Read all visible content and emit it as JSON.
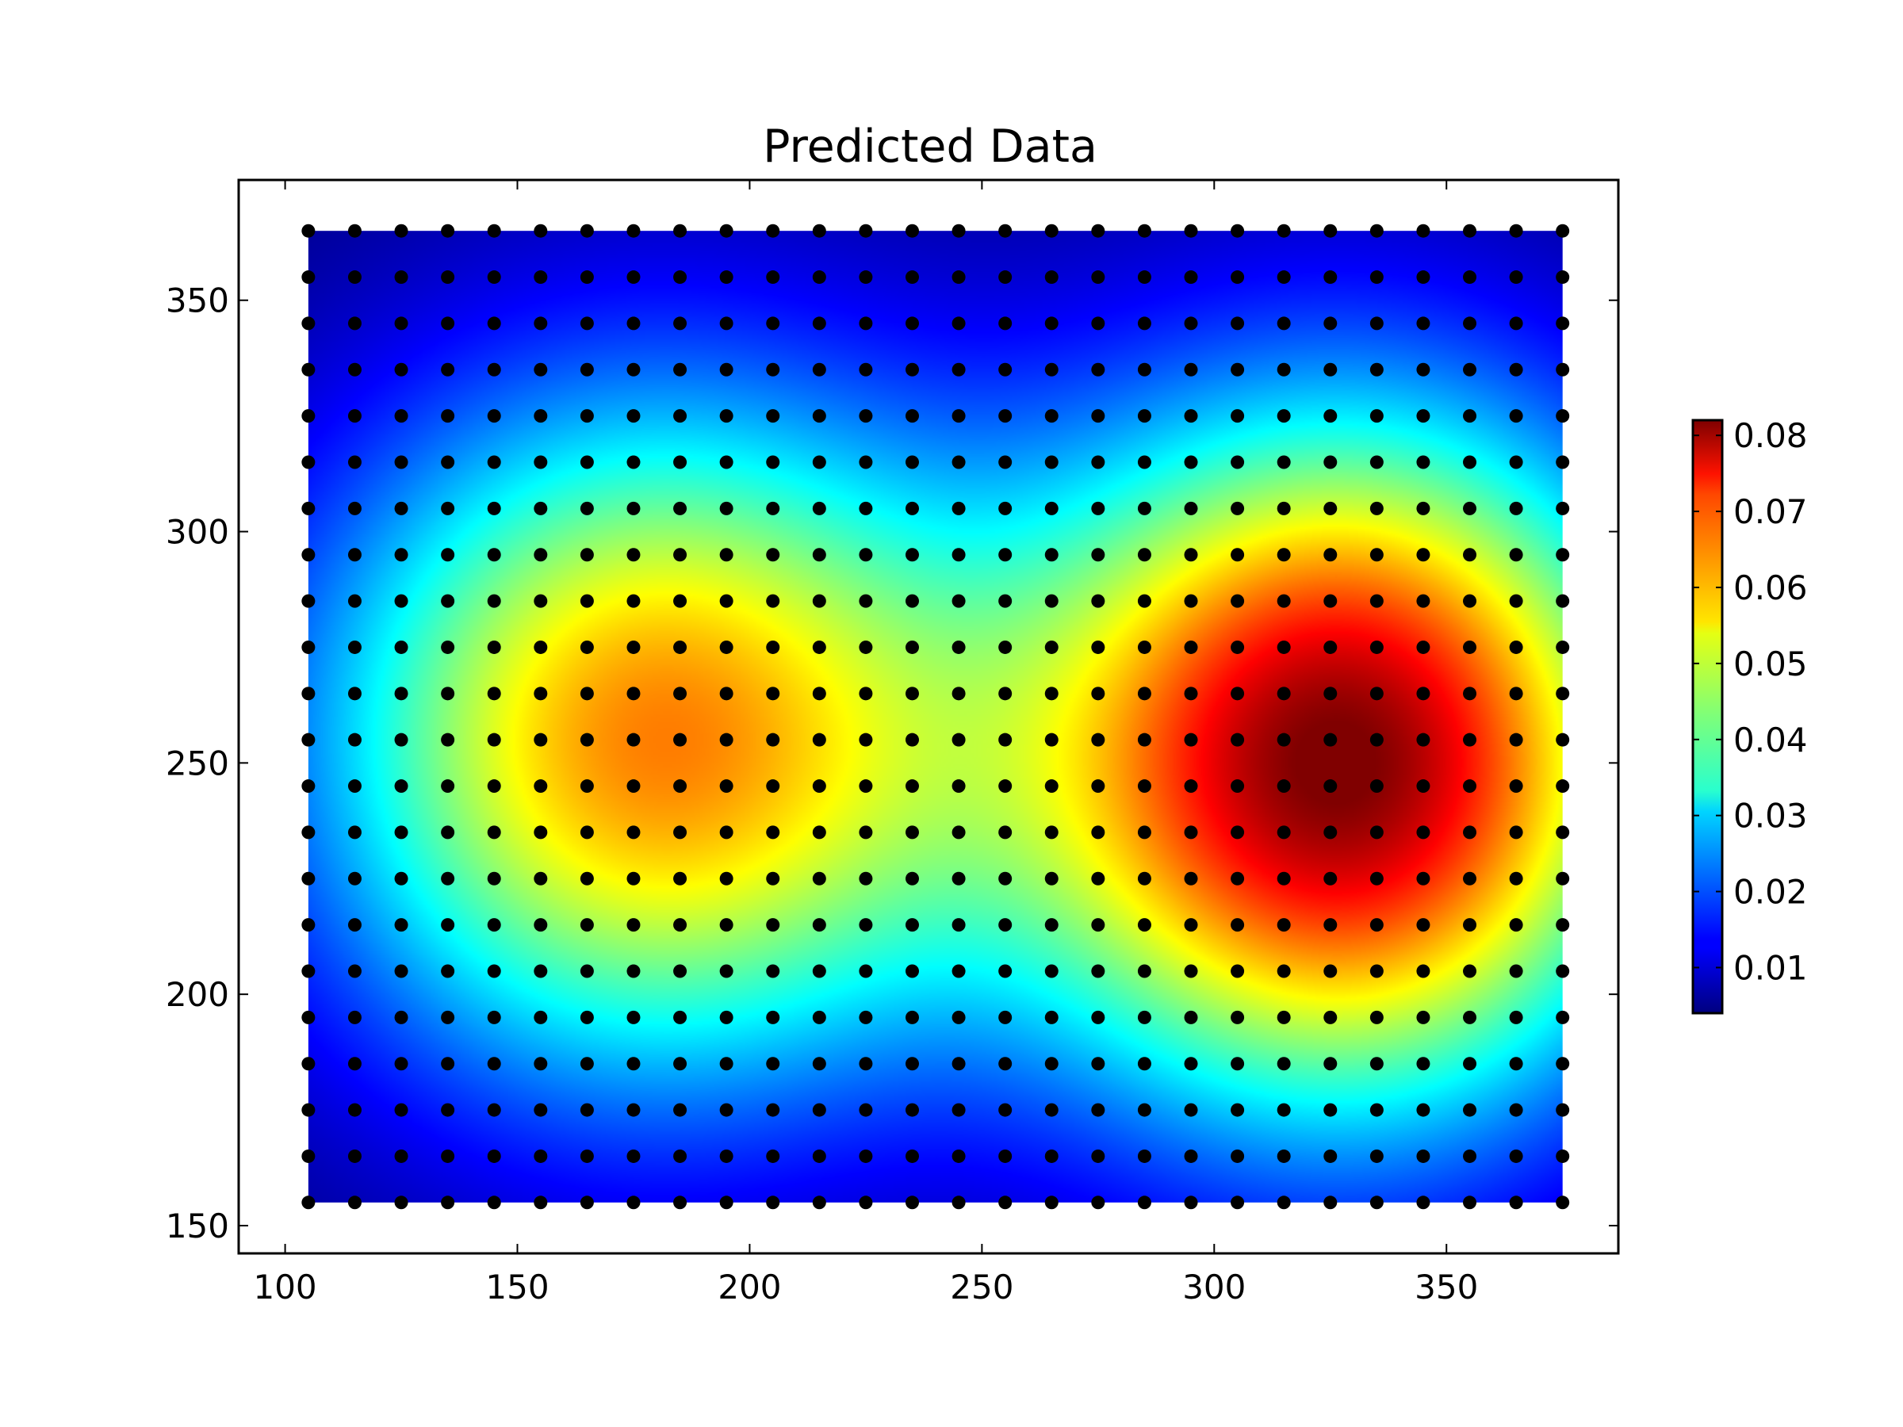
{
  "chart_data": {
    "type": "heatmap",
    "title": "Predicted Data",
    "xlabel": "",
    "ylabel": "",
    "xlim": [
      90,
      387
    ],
    "ylim": [
      144,
      376
    ],
    "xticks": [
      100,
      150,
      200,
      250,
      300,
      350
    ],
    "yticks": [
      150,
      200,
      250,
      300,
      350
    ],
    "field": {
      "x_range": [
        105,
        375
      ],
      "y_range": [
        155,
        365
      ],
      "value_min": 0.004,
      "value_max": 0.082,
      "peaks": [
        {
          "x": 180,
          "y": 255,
          "value": 0.062
        },
        {
          "x": 328,
          "y": 250,
          "value": 0.082
        }
      ]
    },
    "points": {
      "x_start": 105,
      "x_end": 375,
      "x_step": 10,
      "y_start": 155,
      "y_end": 365,
      "y_step": 10,
      "color": "#000000"
    },
    "colorbar": {
      "colormap": "jet",
      "range": [
        0.004,
        0.082
      ],
      "ticks": [
        "0.01",
        "0.02",
        "0.03",
        "0.04",
        "0.05",
        "0.06",
        "0.07",
        "0.08"
      ],
      "tick_values": [
        0.01,
        0.02,
        0.03,
        0.04,
        0.05,
        0.06,
        0.07,
        0.08
      ]
    },
    "grid": false,
    "legend": "none"
  }
}
